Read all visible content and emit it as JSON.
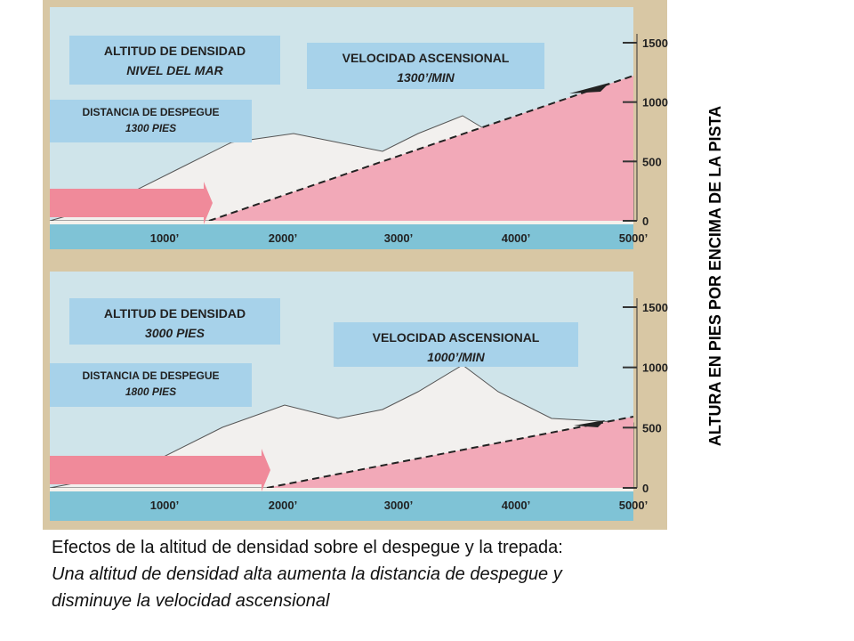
{
  "panels": [
    {
      "density_title": "ALTITUD DE DENSIDAD",
      "density_value": "NIVEL DEL MAR",
      "climb_title": "VELOCIDAD ASCENSIONAL",
      "climb_value": "1300’/MIN",
      "distance_title": "DISTANCIA DE DESPEGUE",
      "distance_value": "1300 PIES",
      "x_labels": [
        "1000’",
        "2000’",
        "3000’",
        "4000’",
        "5000’"
      ],
      "y_labels": [
        "1500",
        "1000",
        "500",
        "0"
      ]
    },
    {
      "density_title": "ALTITUD DE DENSIDAD",
      "density_value": "3000 PIES",
      "climb_title": "VELOCIDAD ASCENSIONAL",
      "climb_value": "1000’/MIN",
      "distance_title": "DISTANCIA DE DESPEGUE",
      "distance_value": "1800 PIES",
      "x_labels": [
        "1000’",
        "2000’",
        "3000’",
        "4000’",
        "5000’"
      ],
      "y_labels": [
        "1500",
        "1000",
        "500",
        "0"
      ]
    }
  ],
  "side_label": "ALTURA EN PIES POR ENCIMA DE LA PISTA",
  "caption": {
    "title": "Efectos de la altitud de densidad sobre el despegue y la trepada:",
    "lines": [
      "Una altitud de densidad alta aumenta la distancia de despegue y",
      "disminuye la velocidad ascensional"
    ]
  }
}
